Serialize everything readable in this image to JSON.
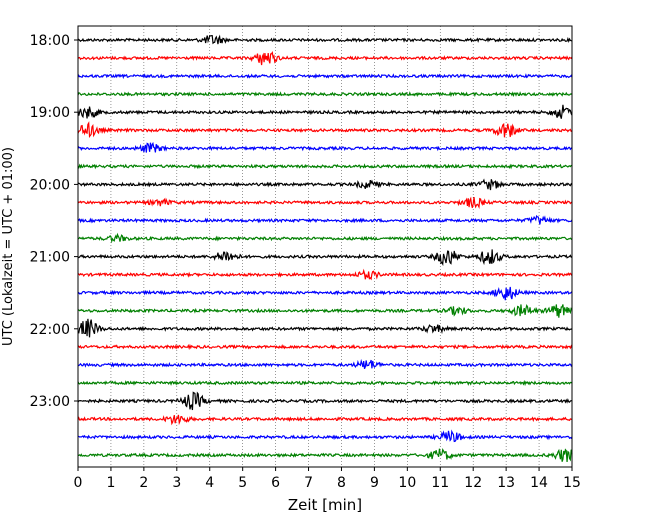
{
  "chart_data": {
    "type": "line",
    "title": "",
    "xlabel": "Zeit  [min]",
    "ylabel": "UTC (Lokalzeit = UTC + 01:00)",
    "xlim": [
      0,
      15
    ],
    "x_ticks": [
      "0",
      "1",
      "2",
      "3",
      "4",
      "5",
      "6",
      "7",
      "8",
      "9",
      "10",
      "11",
      "12",
      "13",
      "14",
      "15"
    ],
    "y_ticks": [
      "18:00",
      "19:00",
      "20:00",
      "21:00",
      "22:00",
      "23:00"
    ],
    "grid": "vertical dotted",
    "trace_colors": [
      "#000000",
      "#ff0000",
      "#0000ff",
      "#008000"
    ],
    "traces": [
      {
        "start": "18:00",
        "events": [
          [
            4.1,
            0.5
          ]
        ]
      },
      {
        "start": "18:15",
        "events": [
          [
            5.7,
            0.8
          ]
        ]
      },
      {
        "start": "18:30",
        "events": []
      },
      {
        "start": "18:45",
        "events": []
      },
      {
        "start": "19:00",
        "events": [
          [
            0.3,
            0.6
          ],
          [
            14.7,
            0.7
          ]
        ]
      },
      {
        "start": "19:15",
        "events": [
          [
            0.3,
            0.7
          ],
          [
            13.0,
            0.8
          ]
        ]
      },
      {
        "start": "19:30",
        "events": [
          [
            2.2,
            0.5
          ]
        ]
      },
      {
        "start": "19:45",
        "events": []
      },
      {
        "start": "20:00",
        "events": [
          [
            8.8,
            0.4
          ],
          [
            12.5,
            0.5
          ]
        ]
      },
      {
        "start": "20:15",
        "events": [
          [
            2.5,
            0.3
          ],
          [
            12.0,
            0.5
          ]
        ]
      },
      {
        "start": "20:30",
        "events": [
          [
            14.0,
            0.4
          ]
        ]
      },
      {
        "start": "20:45",
        "events": [
          [
            1.2,
            0.3
          ]
        ]
      },
      {
        "start": "21:00",
        "events": [
          [
            4.5,
            0.6
          ],
          [
            11.2,
            0.9
          ],
          [
            12.5,
            0.8
          ]
        ]
      },
      {
        "start": "21:15",
        "events": [
          [
            8.8,
            0.4
          ]
        ]
      },
      {
        "start": "21:30",
        "events": [
          [
            13.0,
            0.8
          ]
        ]
      },
      {
        "start": "21:45",
        "events": [
          [
            11.5,
            0.4
          ],
          [
            13.5,
            0.6
          ],
          [
            14.6,
            0.7
          ]
        ]
      },
      {
        "start": "22:00",
        "events": [
          [
            0.3,
            1.0
          ],
          [
            10.8,
            0.4
          ]
        ]
      },
      {
        "start": "22:15",
        "events": []
      },
      {
        "start": "22:30",
        "events": [
          [
            8.8,
            0.5
          ]
        ]
      },
      {
        "start": "22:45",
        "events": []
      },
      {
        "start": "23:00",
        "events": [
          [
            3.5,
            0.9
          ]
        ]
      },
      {
        "start": "23:15",
        "events": [
          [
            3.0,
            0.5
          ]
        ]
      },
      {
        "start": "23:30",
        "events": [
          [
            11.3,
            0.6
          ]
        ]
      },
      {
        "start": "23:45",
        "events": [
          [
            11.0,
            0.6
          ],
          [
            14.8,
            0.7
          ]
        ]
      }
    ]
  }
}
